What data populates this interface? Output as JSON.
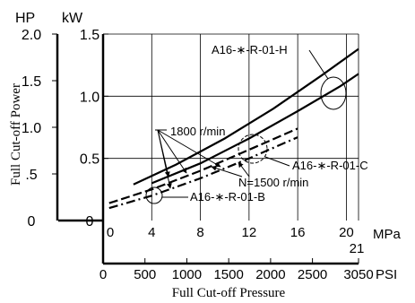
{
  "chart_data": {
    "type": "line",
    "y_axes": [
      {
        "unit": "HP",
        "ticks": [
          "2.0",
          "1.5",
          "1.0",
          ".5",
          "0"
        ],
        "tick_values": [
          2.0,
          1.5,
          1.0,
          0.5,
          0
        ]
      },
      {
        "unit": "kW",
        "ticks": [
          "1.5",
          "1.0",
          "0.5",
          "0"
        ],
        "tick_values": [
          1.5,
          1.0,
          0.5,
          0
        ],
        "ylim": [
          0,
          1.5
        ]
      }
    ],
    "x_axes": [
      {
        "unit": "MPa",
        "ticks": [
          "0",
          "4",
          "8",
          "12",
          "16",
          "20"
        ],
        "tick_values": [
          0,
          4,
          8,
          12,
          16,
          20
        ],
        "xlim": [
          0,
          21
        ],
        "end_label": "21"
      },
      {
        "unit": "PSI",
        "ticks": [
          "0",
          "500",
          "1000",
          "1500",
          "2000",
          "2500",
          "3050"
        ],
        "tick_values": [
          0,
          500,
          1000,
          1500,
          2000,
          2500,
          3050
        ]
      }
    ],
    "ylabel": "Full Cut-off Power",
    "xlabel": "Full Cut-off Pressure",
    "grid": true,
    "series": [
      {
        "style": "solid",
        "x": [
          2.5,
          6,
          10,
          14,
          18,
          21
        ],
        "y": [
          0.29,
          0.45,
          0.66,
          0.9,
          1.17,
          1.38
        ]
      },
      {
        "style": "solid",
        "x": [
          4,
          8,
          12,
          16,
          19.5,
          21
        ],
        "y": [
          0.3,
          0.46,
          0.66,
          0.88,
          1.08,
          1.18
        ]
      },
      {
        "style": "dashed",
        "x": [
          0.5,
          4,
          8,
          12,
          16
        ],
        "y": [
          0.14,
          0.25,
          0.4,
          0.57,
          0.74
        ]
      },
      {
        "style": "dash-dot",
        "x": [
          0.5,
          4,
          8,
          12,
          16
        ],
        "y": [
          0.1,
          0.2,
          0.34,
          0.5,
          0.67
        ]
      }
    ],
    "annotations": [
      {
        "text": "A16-∗-R-01-H"
      },
      {
        "text": "1800 r/min"
      },
      {
        "text": "A16-∗-R-01-C"
      },
      {
        "text": "N=1500 r/min"
      },
      {
        "text": "A16-∗-R-01-B"
      }
    ]
  }
}
